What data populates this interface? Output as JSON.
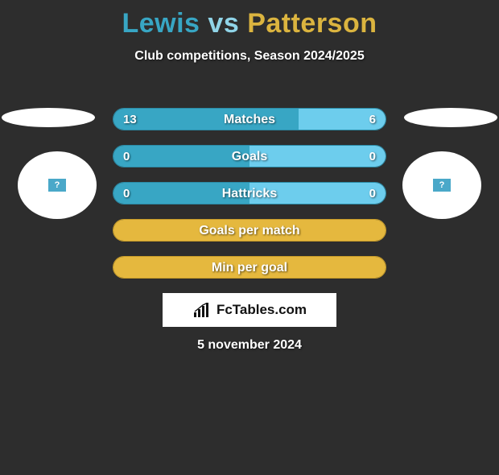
{
  "title": {
    "player1": "Lewis",
    "vs": "vs",
    "player2": "Patterson",
    "color1": "#38a6c4",
    "color_vs": "#90d4e8",
    "color2": "#dbb43f"
  },
  "subtitle": "Club competitions, Season 2024/2025",
  "colors": {
    "background": "#2d2d2d",
    "player1_fill": "#38a6c4",
    "player2_fill": "#6dcded",
    "border1": "#2b8aa5",
    "alt_fill": "#e5b83e",
    "alt_border": "#c79c2a",
    "text": "#ffffff"
  },
  "stats": [
    {
      "label": "Matches",
      "left_value": "13",
      "right_value": "6",
      "left_pct": 68,
      "right_pct": 32,
      "left_color": "#38a6c4",
      "right_color": "#6dcded",
      "border_color": "#2b8aa5",
      "show_left": true,
      "show_right": true
    },
    {
      "label": "Goals",
      "left_value": "0",
      "right_value": "0",
      "left_pct": 50,
      "right_pct": 50,
      "left_color": "#38a6c4",
      "right_color": "#6dcded",
      "border_color": "#2b8aa5",
      "show_left": true,
      "show_right": true
    },
    {
      "label": "Hattricks",
      "left_value": "0",
      "right_value": "0",
      "left_pct": 50,
      "right_pct": 50,
      "left_color": "#38a6c4",
      "right_color": "#6dcded",
      "border_color": "#2b8aa5",
      "show_left": true,
      "show_right": true
    },
    {
      "label": "Goals per match",
      "left_value": "",
      "right_value": "",
      "left_pct": 100,
      "right_pct": 0,
      "left_color": "#e5b83e",
      "right_color": "#e5b83e",
      "border_color": "#c79c2a",
      "show_left": false,
      "show_right": false
    },
    {
      "label": "Min per goal",
      "left_value": "",
      "right_value": "",
      "left_pct": 100,
      "right_pct": 0,
      "left_color": "#e5b83e",
      "right_color": "#e5b83e",
      "border_color": "#c79c2a",
      "show_left": false,
      "show_right": false
    }
  ],
  "branding": "FcTables.com",
  "date": "5 november 2024",
  "avatar_placeholder": "?"
}
